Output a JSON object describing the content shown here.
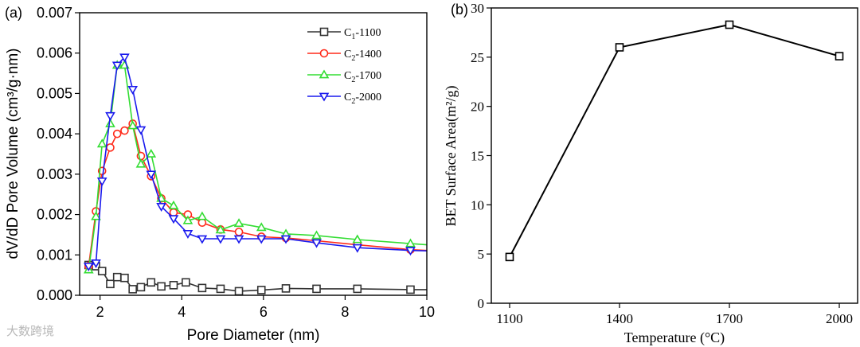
{
  "colors": {
    "c1": "#333333",
    "c2_1400": "#ff2a1a",
    "c2_1700": "#33dd33",
    "c2_2000": "#1a1aee"
  },
  "watermark": "大数跨境",
  "chart_data": [
    {
      "panel_label": "(a)",
      "type": "line",
      "xlabel": "Pore Diameter (nm)",
      "ylabel": "dV/dD Pore Volume (cm³/g·nm)",
      "xlim": [
        1.5,
        10
      ],
      "ylim": [
        0,
        0.007
      ],
      "xticks": [
        "2",
        "4",
        "6",
        "8",
        "10"
      ],
      "yticks": [
        "0.000",
        "0.001",
        "0.002",
        "0.003",
        "0.004",
        "0.005",
        "0.006",
        "0.007"
      ],
      "legend_position": "top-right",
      "series": [
        {
          "name": "C1-1100",
          "base": "C",
          "sub": "1",
          "suffix": "-1100",
          "marker": "square",
          "color": "#333333",
          "x": [
            1.72,
            1.9,
            2.05,
            2.25,
            2.42,
            2.6,
            2.8,
            3.0,
            3.25,
            3.5,
            3.8,
            4.1,
            4.5,
            4.95,
            5.4,
            5.95,
            6.55,
            7.3,
            8.3,
            9.6,
            10.0
          ],
          "y": [
            0.00075,
            0.00072,
            0.0006,
            0.00028,
            0.00045,
            0.00043,
            0.00015,
            0.0002,
            0.00032,
            0.00022,
            0.00025,
            0.00032,
            0.00018,
            0.00016,
            0.0001,
            0.00013,
            0.00017,
            0.00016,
            0.00016,
            0.00014,
            0.00014
          ]
        },
        {
          "name": "C2-1400",
          "base": "C",
          "sub": "2",
          "suffix": "-1400",
          "marker": "circle",
          "color": "#ff2a1a",
          "x": [
            1.72,
            1.9,
            2.05,
            2.25,
            2.42,
            2.6,
            2.8,
            3.0,
            3.25,
            3.5,
            3.8,
            4.15,
            4.5,
            4.95,
            5.4,
            5.95,
            6.55,
            7.3,
            8.3,
            9.6,
            10.0
          ],
          "y": [
            0.00072,
            0.00208,
            0.00308,
            0.00366,
            0.004,
            0.00408,
            0.00425,
            0.00345,
            0.00295,
            0.0024,
            0.00205,
            0.002,
            0.0018,
            0.00163,
            0.00157,
            0.00145,
            0.00142,
            0.00135,
            0.00125,
            0.00113,
            0.00111
          ]
        },
        {
          "name": "C2-1700",
          "base": "C",
          "sub": "2",
          "suffix": "-1700",
          "marker": "triangle-up",
          "color": "#33dd33",
          "x": [
            1.72,
            1.9,
            2.05,
            2.25,
            2.42,
            2.6,
            2.8,
            3.0,
            3.25,
            3.5,
            3.8,
            4.15,
            4.5,
            4.95,
            5.4,
            5.95,
            6.55,
            7.3,
            8.3,
            9.6,
            10.0
          ],
          "y": [
            0.00063,
            0.00195,
            0.00375,
            0.00425,
            0.0057,
            0.0057,
            0.0042,
            0.00325,
            0.0035,
            0.0024,
            0.00222,
            0.00185,
            0.00195,
            0.00162,
            0.00178,
            0.00168,
            0.00152,
            0.00148,
            0.00138,
            0.00128,
            0.00125
          ]
        },
        {
          "name": "C2-2000",
          "base": "C",
          "sub": "2",
          "suffix": "-2000",
          "marker": "triangle-down",
          "color": "#1a1aee",
          "x": [
            1.72,
            1.9,
            2.05,
            2.25,
            2.42,
            2.6,
            2.8,
            3.0,
            3.25,
            3.5,
            3.8,
            4.15,
            4.5,
            4.95,
            5.4,
            5.95,
            6.55,
            7.3,
            8.3,
            9.6,
            10.0
          ],
          "y": [
            0.00072,
            0.0008,
            0.00283,
            0.00445,
            0.0057,
            0.0059,
            0.0051,
            0.0041,
            0.003,
            0.0022,
            0.0019,
            0.00153,
            0.0014,
            0.0014,
            0.0014,
            0.0014,
            0.0014,
            0.0013,
            0.00118,
            0.00111,
            0.0011
          ]
        }
      ]
    },
    {
      "panel_label": "(b)",
      "type": "line",
      "xlabel": "Temperature (°C)",
      "ylabel": "BET Surface Area(m²/g)",
      "categories": [
        "1100",
        "1400",
        "1700",
        "2000"
      ],
      "values": [
        4.7,
        26.0,
        28.3,
        25.1
      ],
      "ylim": [
        0,
        30
      ],
      "yticks": [
        "0",
        "5",
        "10",
        "15",
        "20",
        "25",
        "30"
      ],
      "marker": "square",
      "color": "#000000"
    }
  ]
}
